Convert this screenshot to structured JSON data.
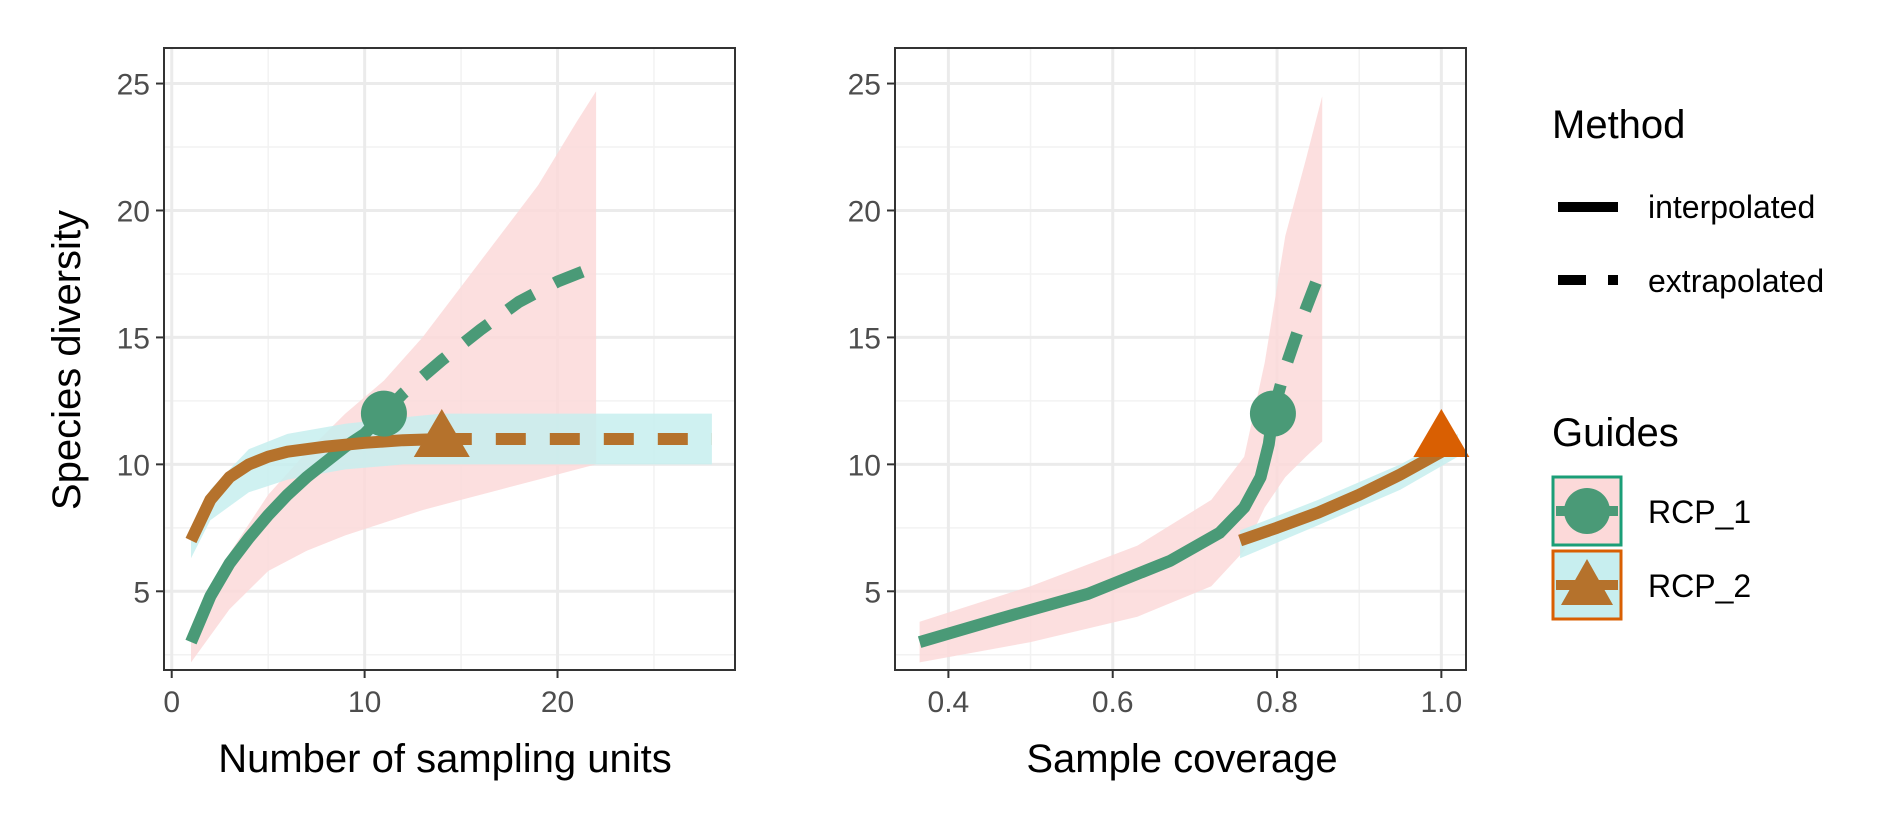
{
  "chart_data": [
    {
      "type": "line",
      "xlabel": "Number of sampling units",
      "ylabel": "Species diversity",
      "xlim": [
        -0.4,
        29.2
      ],
      "ylim": [
        1.9,
        26.4
      ],
      "xticks": [
        0,
        10,
        20
      ],
      "xtick_labels": [
        "0",
        "10",
        "20"
      ],
      "yticks": [
        5,
        10,
        15,
        20,
        25
      ],
      "ytick_labels": [
        "5",
        "10",
        "15",
        "20",
        "25"
      ],
      "grid": true,
      "series": [
        {
          "name": "RCP_1",
          "color": "#4a9a77",
          "band_color": "#fcd9d9",
          "interpolated": [
            [
              1,
              3.0
            ],
            [
              2,
              4.8
            ],
            [
              3,
              6.1
            ],
            [
              4,
              7.1
            ],
            [
              5,
              8.0
            ],
            [
              6,
              8.8
            ],
            [
              7,
              9.5
            ],
            [
              8,
              10.1
            ],
            [
              9,
              10.7
            ],
            [
              10,
              11.2
            ],
            [
              11,
              12.0
            ]
          ],
          "extrapolated": [
            [
              11,
              12.0
            ],
            [
              12,
              12.8
            ],
            [
              14,
              14.1
            ],
            [
              16,
              15.3
            ],
            [
              18,
              16.4
            ],
            [
              20,
              17.2
            ],
            [
              22,
              17.8
            ]
          ],
          "reference_point": [
            11,
            12.0
          ],
          "ci_upper": [
            [
              1,
              3.1
            ],
            [
              3,
              6.5
            ],
            [
              5,
              8.8
            ],
            [
              7,
              10.5
            ],
            [
              9,
              12.0
            ],
            [
              11,
              13.3
            ],
            [
              13,
              15.0
            ],
            [
              15,
              17.0
            ],
            [
              17,
              19.0
            ],
            [
              19,
              21.0
            ],
            [
              21,
              23.5
            ],
            [
              22,
              24.7
            ]
          ],
          "ci_lower": [
            [
              1,
              2.2
            ],
            [
              3,
              4.3
            ],
            [
              5,
              5.8
            ],
            [
              7,
              6.6
            ],
            [
              9,
              7.2
            ],
            [
              11,
              7.7
            ],
            [
              13,
              8.2
            ],
            [
              15,
              8.6
            ],
            [
              17,
              9.0
            ],
            [
              19,
              9.4
            ],
            [
              21,
              9.8
            ],
            [
              22,
              10.0
            ]
          ]
        },
        {
          "name": "RCP_2",
          "color": "#b5722c",
          "band_color": "#c7eeef",
          "interpolated": [
            [
              1,
              7.0
            ],
            [
              2,
              8.6
            ],
            [
              3,
              9.5
            ],
            [
              4,
              10.0
            ],
            [
              5,
              10.3
            ],
            [
              6,
              10.5
            ],
            [
              8,
              10.7
            ],
            [
              10,
              10.85
            ],
            [
              12,
              10.95
            ],
            [
              14,
              11.0
            ]
          ],
          "extrapolated": [
            [
              14,
              11.0
            ],
            [
              28,
              11.0
            ]
          ],
          "reference_point": [
            14,
            11.0
          ],
          "ci_upper": [
            [
              1,
              7.2
            ],
            [
              2,
              9.0
            ],
            [
              4,
              10.6
            ],
            [
              6,
              11.2
            ],
            [
              9,
              11.6
            ],
            [
              12,
              11.85
            ],
            [
              14,
              12.0
            ],
            [
              28,
              12.0
            ]
          ],
          "ci_lower": [
            [
              1,
              6.3
            ],
            [
              2,
              7.8
            ],
            [
              4,
              8.9
            ],
            [
              6,
              9.4
            ],
            [
              9,
              9.8
            ],
            [
              12,
              10.0
            ],
            [
              14,
              10.0
            ],
            [
              28,
              10.0
            ]
          ]
        }
      ]
    },
    {
      "type": "line",
      "xlabel": "Sample coverage",
      "ylabel": "",
      "xlim": [
        0.335,
        1.03
      ],
      "ylim": [
        1.9,
        26.4
      ],
      "xticks": [
        0.4,
        0.6,
        0.8,
        1.0
      ],
      "xtick_labels": [
        "0.4",
        "0.6",
        "0.8",
        "1.0"
      ],
      "yticks": [
        5,
        10,
        15,
        20,
        25
      ],
      "ytick_labels": [
        "5",
        "10",
        "15",
        "20",
        "25"
      ],
      "grid": true,
      "series": [
        {
          "name": "RCP_1",
          "color": "#4a9a77",
          "band_color": "#fcd9d9",
          "interpolated": [
            [
              0.365,
              3.0
            ],
            [
              0.46,
              3.9
            ],
            [
              0.57,
              4.9
            ],
            [
              0.67,
              6.2
            ],
            [
              0.73,
              7.3
            ],
            [
              0.76,
              8.3
            ],
            [
              0.78,
              9.5
            ],
            [
              0.79,
              10.8
            ],
            [
              0.795,
              12.0
            ]
          ],
          "extrapolated": [
            [
              0.795,
              12.0
            ],
            [
              0.81,
              13.8
            ],
            [
              0.83,
              15.7
            ],
            [
              0.855,
              17.8
            ]
          ],
          "reference_point": [
            0.795,
            12.0
          ],
          "ci_upper": [
            [
              0.365,
              3.8
            ],
            [
              0.5,
              5.2
            ],
            [
              0.63,
              6.8
            ],
            [
              0.72,
              8.6
            ],
            [
              0.76,
              10.3
            ],
            [
              0.785,
              14.0
            ],
            [
              0.81,
              19.0
            ],
            [
              0.835,
              22.0
            ],
            [
              0.855,
              24.5
            ]
          ],
          "ci_lower": [
            [
              0.365,
              2.2
            ],
            [
              0.5,
              3.0
            ],
            [
              0.63,
              4.0
            ],
            [
              0.72,
              5.2
            ],
            [
              0.76,
              6.6
            ],
            [
              0.785,
              8.3
            ],
            [
              0.81,
              9.5
            ],
            [
              0.835,
              10.3
            ],
            [
              0.855,
              10.9
            ]
          ]
        },
        {
          "name": "RCP_2",
          "color": "#b5722c",
          "band_color": "#c7eeef",
          "point_color": "#d95f02",
          "interpolated": [
            [
              0.755,
              7.0
            ],
            [
              0.8,
              7.5
            ],
            [
              0.85,
              8.1
            ],
            [
              0.9,
              8.8
            ],
            [
              0.95,
              9.6
            ],
            [
              1.0,
              10.5
            ],
            [
              1.02,
              10.8
            ]
          ],
          "extrapolated": [],
          "reference_point": [
            1.0,
            11.0
          ],
          "ci_upper": [
            [
              0.755,
              7.4
            ],
            [
              0.85,
              8.6
            ],
            [
              0.95,
              10.0
            ],
            [
              1.02,
              11.2
            ]
          ],
          "ci_lower": [
            [
              0.755,
              6.3
            ],
            [
              0.85,
              7.6
            ],
            [
              0.95,
              9.0
            ],
            [
              1.02,
              10.3
            ]
          ]
        }
      ]
    }
  ],
  "legend": {
    "placement": "right",
    "method": {
      "title": "Method",
      "interpolated_label": "interpolated",
      "extrapolated_label": "extrapolated"
    },
    "guides": {
      "title": "Guides",
      "items": [
        {
          "label": "RCP_1",
          "shape": "circle",
          "color": "#4a9a77",
          "border": "#1b9e77",
          "fill": "#fcd9d9"
        },
        {
          "label": "RCP_2",
          "shape": "triangle",
          "color": "#b5722c",
          "border": "#d95f02",
          "fill": "#c7eeef"
        }
      ]
    }
  }
}
